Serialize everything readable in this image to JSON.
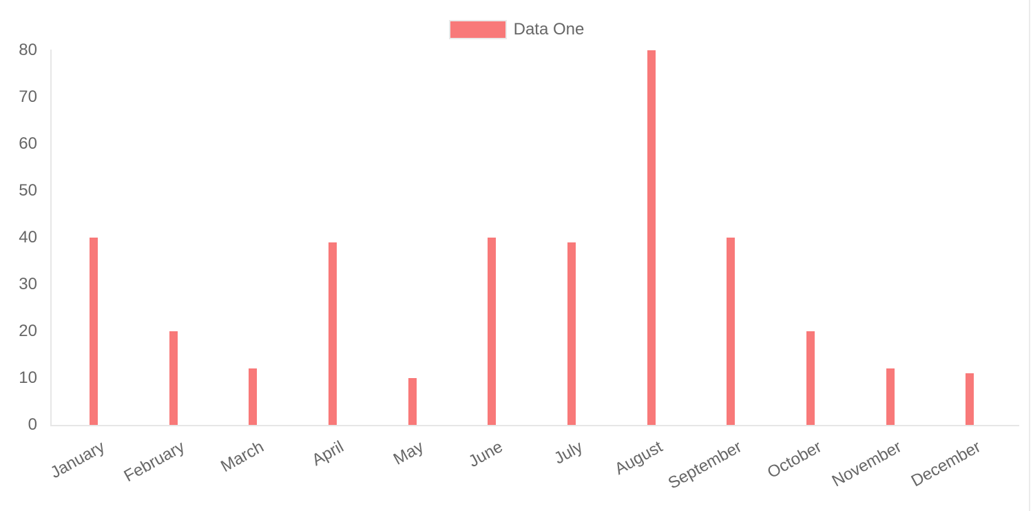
{
  "legend": {
    "label": "Data One",
    "swatch_color": "#f87979"
  },
  "colors": {
    "bar": "#f87979",
    "axis_line": "#e6e6e6",
    "tick_label": "#666666",
    "background": "#ffffff"
  },
  "chart_data": {
    "type": "bar",
    "title": "",
    "categories": [
      "January",
      "February",
      "March",
      "April",
      "May",
      "June",
      "July",
      "August",
      "September",
      "October",
      "November",
      "December"
    ],
    "series": [
      {
        "name": "Data One",
        "color": "#f87979",
        "values": [
          40,
          20,
          12,
          39,
          10,
          40,
          39,
          80,
          40,
          20,
          12,
          11
        ]
      }
    ],
    "xlabel": "",
    "ylabel": "",
    "ylim": [
      0,
      80
    ],
    "yticks": [
      0,
      10,
      20,
      30,
      40,
      50,
      60,
      70,
      80
    ],
    "grid": false,
    "legend_position": "top-center"
  }
}
